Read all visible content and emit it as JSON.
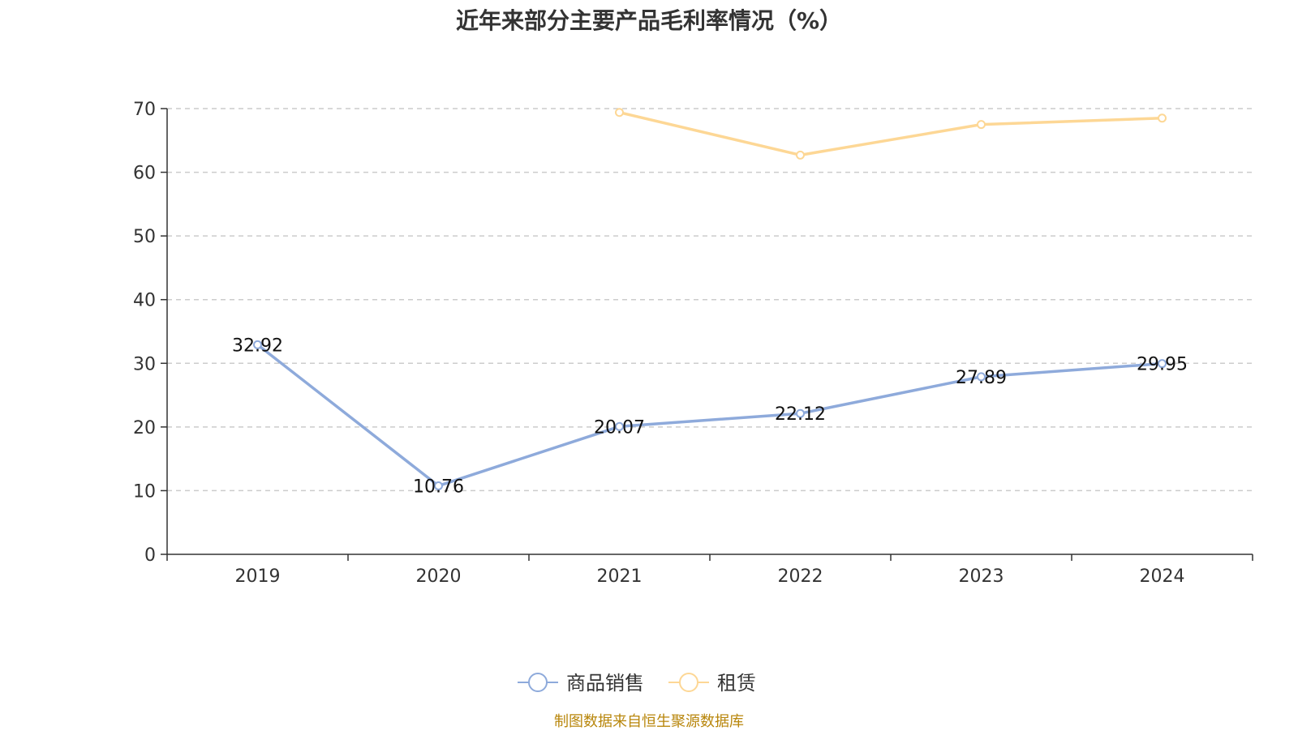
{
  "chart_data": {
    "type": "line",
    "title": "近年来部分主要产品毛利率情况（%）",
    "categories": [
      "2019",
      "2020",
      "2021",
      "2022",
      "2023",
      "2024"
    ],
    "ylim": [
      0,
      70
    ],
    "yticks": [
      0,
      10,
      20,
      30,
      40,
      50,
      60,
      70
    ],
    "grid": true,
    "legend_position": "bottom",
    "series": [
      {
        "name": "商品销售",
        "values": [
          32.92,
          10.76,
          20.07,
          22.12,
          27.89,
          29.95
        ],
        "labels": [
          "32.92",
          "10.76",
          "20.07",
          "22.12",
          "27.89",
          "29.95"
        ],
        "color": "#8eaadb"
      },
      {
        "name": "租赁",
        "values": [
          null,
          null,
          69.4,
          62.7,
          67.5,
          68.5
        ],
        "color": "#fdd795"
      }
    ]
  },
  "source": "制图数据来自恒生聚源数据库"
}
